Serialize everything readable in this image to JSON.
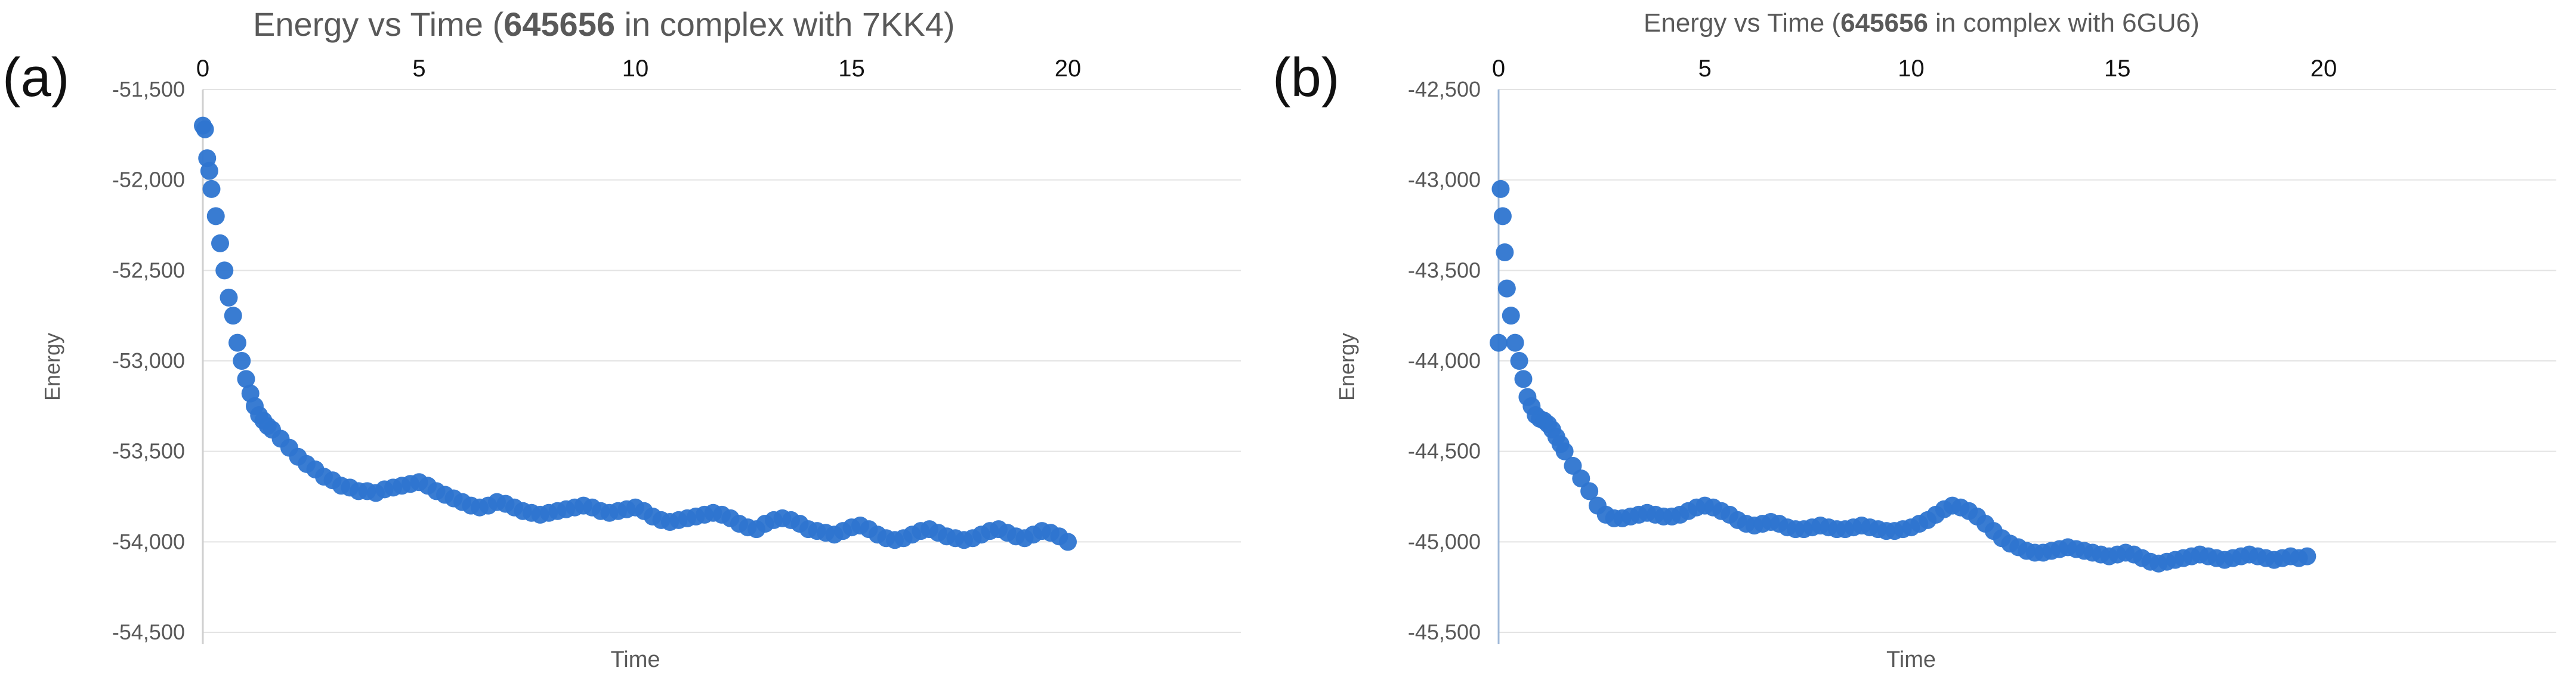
{
  "panels": [
    {
      "label": "(a)"
    },
    {
      "label": "(b)"
    }
  ],
  "chart_data": [
    {
      "type": "scatter",
      "title_prefix": "Energy vs Time (",
      "title_bold": "645656",
      "title_suffix": " in complex with 7KK4)",
      "title": "Energy vs Time (645656 in complex with 7KK4)",
      "xlabel": "Time",
      "ylabel": "Energy",
      "xlim": [
        0,
        20
      ],
      "ylim": [
        -54500,
        -51500
      ],
      "x_axis_position": "top",
      "x_ticks": [
        0,
        5,
        10,
        15,
        20
      ],
      "x_tick_labels": [
        "0",
        "5",
        "10",
        "15",
        "20"
      ],
      "y_ticks": [
        -51500,
        -52000,
        -52500,
        -53000,
        -53500,
        -54000,
        -54500
      ],
      "y_tick_labels": [
        "-51,500",
        "-52,000",
        "-52,500",
        "-53,000",
        "-53,500",
        "-54,000",
        "-54,500"
      ],
      "grid": "horizontal",
      "marker_color": "#2E75D0",
      "x": [
        0.0,
        0.05,
        0.1,
        0.15,
        0.2,
        0.3,
        0.4,
        0.5,
        0.6,
        0.7,
        0.8,
        0.9,
        1.0,
        1.1,
        1.2,
        1.3,
        1.4,
        1.5,
        1.6,
        1.8,
        2.0,
        2.2,
        2.4,
        2.6,
        2.8,
        3.0,
        3.2,
        3.4,
        3.6,
        3.8,
        4.0,
        4.2,
        4.4,
        4.6,
        4.8,
        5.0,
        5.2,
        5.4,
        5.6,
        5.8,
        6.0,
        6.2,
        6.4,
        6.6,
        6.8,
        7.0,
        7.2,
        7.4,
        7.6,
        7.8,
        8.0,
        8.2,
        8.4,
        8.6,
        8.8,
        9.0,
        9.2,
        9.4,
        9.6,
        9.8,
        10.0,
        10.2,
        10.4,
        10.6,
        10.8,
        11.0,
        11.2,
        11.4,
        11.6,
        11.8,
        12.0,
        12.2,
        12.4,
        12.6,
        12.8,
        13.0,
        13.2,
        13.4,
        13.6,
        13.8,
        14.0,
        14.2,
        14.4,
        14.6,
        14.8,
        15.0,
        15.2,
        15.4,
        15.6,
        15.8,
        16.0,
        16.2,
        16.4,
        16.6,
        16.8,
        17.0,
        17.2,
        17.4,
        17.6,
        17.8,
        18.0,
        18.2,
        18.4,
        18.6,
        18.8,
        19.0,
        19.2,
        19.4,
        19.6,
        19.8,
        20.0
      ],
      "y": [
        -51700,
        -51720,
        -51880,
        -51950,
        -52050,
        -52200,
        -52350,
        -52500,
        -52650,
        -52750,
        -52900,
        -53000,
        -53100,
        -53180,
        -53250,
        -53300,
        -53330,
        -53360,
        -53380,
        -53430,
        -53480,
        -53530,
        -53570,
        -53600,
        -53640,
        -53660,
        -53690,
        -53700,
        -53720,
        -53720,
        -53730,
        -53710,
        -53700,
        -53690,
        -53680,
        -53670,
        -53690,
        -53720,
        -53740,
        -53760,
        -53780,
        -53800,
        -53810,
        -53800,
        -53780,
        -53790,
        -53810,
        -53830,
        -53840,
        -53850,
        -53840,
        -53830,
        -53820,
        -53810,
        -53800,
        -53810,
        -53830,
        -53840,
        -53830,
        -53820,
        -53810,
        -53830,
        -53860,
        -53880,
        -53890,
        -53880,
        -53870,
        -53860,
        -53850,
        -53840,
        -53850,
        -53870,
        -53900,
        -53920,
        -53930,
        -53900,
        -53880,
        -53870,
        -53880,
        -53900,
        -53930,
        -53940,
        -53950,
        -53960,
        -53940,
        -53920,
        -53910,
        -53930,
        -53960,
        -53980,
        -53990,
        -53980,
        -53960,
        -53940,
        -53930,
        -53950,
        -53970,
        -53980,
        -53990,
        -53980,
        -53960,
        -53940,
        -53930,
        -53950,
        -53970,
        -53980,
        -53960,
        -53940,
        -53950,
        -53970,
        -54000
      ],
      "series": [
        {
          "values_ref": "y"
        }
      ]
    },
    {
      "type": "scatter",
      "title_prefix": "Energy vs Time (",
      "title_bold": "645656",
      "title_suffix": " in complex with 6GU6)",
      "title": "Energy vs Time (645656 in complex with 6GU6)",
      "xlabel": "Time",
      "ylabel": "Energy",
      "xlim": [
        0,
        20
      ],
      "ylim": [
        -45500,
        -42500
      ],
      "x_axis_position": "top",
      "x_ticks": [
        0,
        5,
        10,
        15,
        20
      ],
      "x_tick_labels": [
        "0",
        "5",
        "10",
        "15",
        "20"
      ],
      "y_ticks": [
        -42500,
        -43000,
        -43500,
        -44000,
        -44500,
        -45000,
        -45500
      ],
      "y_tick_labels": [
        "-42,500",
        "-43,000",
        "-43,500",
        "-44,000",
        "-44,500",
        "-45,000",
        "-45,500"
      ],
      "grid": "horizontal",
      "marker_color": "#2E75D0",
      "x": [
        0.0,
        0.05,
        0.1,
        0.15,
        0.2,
        0.3,
        0.4,
        0.5,
        0.6,
        0.7,
        0.8,
        0.9,
        1.0,
        1.1,
        1.2,
        1.3,
        1.4,
        1.5,
        1.6,
        1.8,
        2.0,
        2.2,
        2.4,
        2.6,
        2.8,
        3.0,
        3.2,
        3.4,
        3.6,
        3.8,
        4.0,
        4.2,
        4.4,
        4.6,
        4.8,
        5.0,
        5.2,
        5.4,
        5.6,
        5.8,
        6.0,
        6.2,
        6.4,
        6.6,
        6.8,
        7.0,
        7.2,
        7.4,
        7.6,
        7.8,
        8.0,
        8.2,
        8.4,
        8.6,
        8.8,
        9.0,
        9.2,
        9.4,
        9.6,
        9.8,
        10.0,
        10.2,
        10.4,
        10.6,
        10.8,
        11.0,
        11.2,
        11.4,
        11.6,
        11.8,
        12.0,
        12.2,
        12.4,
        12.6,
        12.8,
        13.0,
        13.2,
        13.4,
        13.6,
        13.8,
        14.0,
        14.2,
        14.4,
        14.6,
        14.8,
        15.0,
        15.2,
        15.4,
        15.6,
        15.8,
        16.0,
        16.2,
        16.4,
        16.6,
        16.8,
        17.0,
        17.2,
        17.4,
        17.6,
        17.8,
        18.0,
        18.2,
        18.4,
        18.6,
        18.8,
        19.0,
        19.2,
        19.4,
        19.6
      ],
      "y": [
        -43900,
        -43050,
        -43200,
        -43400,
        -43600,
        -43750,
        -43900,
        -44000,
        -44100,
        -44200,
        -44250,
        -44300,
        -44320,
        -44330,
        -44350,
        -44380,
        -44420,
        -44460,
        -44500,
        -44580,
        -44650,
        -44720,
        -44800,
        -44850,
        -44870,
        -44870,
        -44860,
        -44850,
        -44840,
        -44850,
        -44860,
        -44860,
        -44850,
        -44830,
        -44810,
        -44800,
        -44810,
        -44830,
        -44850,
        -44880,
        -44900,
        -44910,
        -44900,
        -44890,
        -44900,
        -44920,
        -44930,
        -44930,
        -44920,
        -44910,
        -44920,
        -44930,
        -44930,
        -44920,
        -44910,
        -44920,
        -44930,
        -44940,
        -44940,
        -44930,
        -44920,
        -44900,
        -44880,
        -44850,
        -44820,
        -44800,
        -44810,
        -44830,
        -44860,
        -44900,
        -44940,
        -44980,
        -45010,
        -45030,
        -45050,
        -45060,
        -45060,
        -45050,
        -45040,
        -45030,
        -45040,
        -45050,
        -45060,
        -45070,
        -45080,
        -45070,
        -45060,
        -45070,
        -45090,
        -45110,
        -45120,
        -45110,
        -45100,
        -45090,
        -45080,
        -45070,
        -45080,
        -45090,
        -45100,
        -45090,
        -45080,
        -45070,
        -45080,
        -45090,
        -45100,
        -45090,
        -45080,
        -45090,
        -45080
      ],
      "series": [
        {
          "values_ref": "y"
        }
      ]
    }
  ]
}
